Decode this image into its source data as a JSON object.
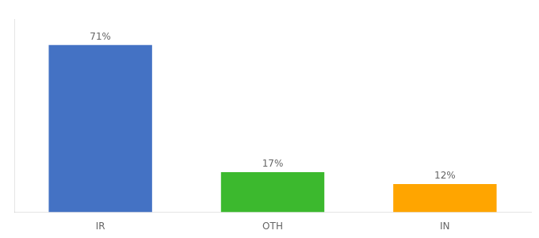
{
  "chart_data": {
    "type": "bar",
    "categories": [
      "IR",
      "OTH",
      "IN"
    ],
    "values": [
      71,
      17,
      12
    ],
    "value_labels": [
      "71%",
      "17%",
      "12%"
    ],
    "data_labels": true,
    "colors": [
      "#4472C4",
      "#3CB92E",
      "#FFA500"
    ],
    "ylim": [
      0,
      82
    ],
    "tick_labels": "x",
    "grid": false
  }
}
